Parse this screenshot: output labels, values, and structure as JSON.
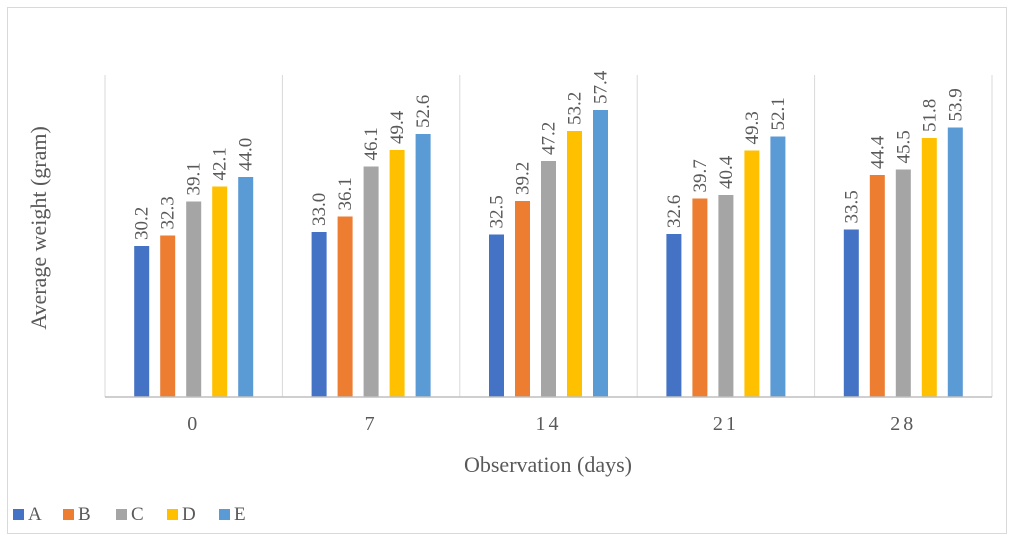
{
  "chart_data": {
    "type": "bar",
    "title": "",
    "xlabel": "Observation (days)",
    "ylabel": "Average weight (gram)",
    "categories": [
      "0",
      "7",
      "14",
      "21",
      "28"
    ],
    "series": [
      {
        "name": "A",
        "color": "#4472C4",
        "values": [
          30.2,
          33.0,
          32.5,
          32.6,
          33.5
        ]
      },
      {
        "name": "B",
        "color": "#ED7D31",
        "values": [
          32.3,
          36.1,
          39.2,
          39.7,
          44.4
        ]
      },
      {
        "name": "C",
        "color": "#A5A5A5",
        "values": [
          39.1,
          46.1,
          47.2,
          40.4,
          45.5
        ]
      },
      {
        "name": "D",
        "color": "#FFC000",
        "values": [
          42.1,
          49.4,
          53.2,
          49.3,
          51.8
        ]
      },
      {
        "name": "E",
        "color": "#5B9BD5",
        "values": [
          44.0,
          52.6,
          57.4,
          52.1,
          53.9
        ]
      }
    ],
    "ylim": [
      0,
      71
    ],
    "grid": "vertical category separators",
    "legend_position": "bottom-left",
    "data_labels": true
  }
}
